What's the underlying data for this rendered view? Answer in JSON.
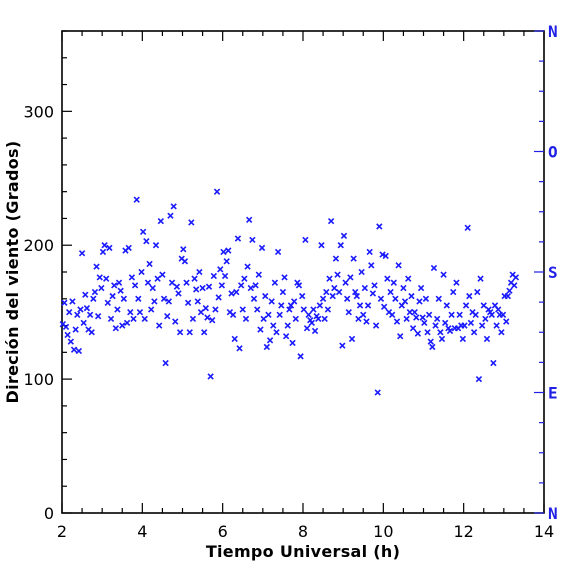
{
  "chart_data": {
    "type": "scatter",
    "xlabel": "Tiempo Universal (h)",
    "ylabel": "Direción del viento (Grados)",
    "xlim": [
      2,
      14
    ],
    "ylim": [
      0,
      360
    ],
    "x_ticks": [
      "2",
      "4",
      "6",
      "8",
      "10",
      "12",
      "14"
    ],
    "y_ticks": [
      "0",
      "100",
      "200",
      "300"
    ],
    "right_axis_labels": [
      {
        "value": 0,
        "label": "N"
      },
      {
        "value": 90,
        "label": "E"
      },
      {
        "value": 180,
        "label": "S"
      },
      {
        "value": 270,
        "label": "O"
      },
      {
        "value": 360,
        "label": "N"
      }
    ],
    "marker": "x",
    "marker_color": "#1a1aff",
    "grid": false,
    "points": [
      [
        2.02,
        141
      ],
      [
        2.06,
        157
      ],
      [
        2.1,
        139
      ],
      [
        2.14,
        133
      ],
      [
        2.18,
        150
      ],
      [
        2.22,
        128
      ],
      [
        2.26,
        158
      ],
      [
        2.3,
        122
      ],
      [
        2.34,
        137
      ],
      [
        2.38,
        148
      ],
      [
        2.42,
        121
      ],
      [
        2.46,
        152
      ],
      [
        2.5,
        194
      ],
      [
        2.54,
        142
      ],
      [
        2.58,
        163
      ],
      [
        2.62,
        153
      ],
      [
        2.66,
        137
      ],
      [
        2.7,
        148
      ],
      [
        2.74,
        135
      ],
      [
        2.78,
        160
      ],
      [
        2.82,
        165
      ],
      [
        2.86,
        184
      ],
      [
        2.9,
        147
      ],
      [
        2.94,
        176
      ],
      [
        2.98,
        168
      ],
      [
        3.02,
        195
      ],
      [
        3.06,
        200
      ],
      [
        3.1,
        175
      ],
      [
        3.14,
        157
      ],
      [
        3.18,
        198
      ],
      [
        3.22,
        145
      ],
      [
        3.26,
        162
      ],
      [
        3.3,
        170
      ],
      [
        3.34,
        138
      ],
      [
        3.38,
        152
      ],
      [
        3.42,
        172
      ],
      [
        3.46,
        166
      ],
      [
        3.5,
        140
      ],
      [
        3.54,
        160
      ],
      [
        3.58,
        196
      ],
      [
        3.62,
        142
      ],
      [
        3.66,
        198
      ],
      [
        3.7,
        150
      ],
      [
        3.74,
        176
      ],
      [
        3.78,
        145
      ],
      [
        3.82,
        170
      ],
      [
        3.86,
        234
      ],
      [
        3.9,
        160
      ],
      [
        3.94,
        150
      ],
      [
        3.98,
        180
      ],
      [
        4.02,
        210
      ],
      [
        4.06,
        145
      ],
      [
        4.1,
        203
      ],
      [
        4.14,
        172
      ],
      [
        4.18,
        186
      ],
      [
        4.22,
        152
      ],
      [
        4.26,
        168
      ],
      [
        4.3,
        158
      ],
      [
        4.34,
        200
      ],
      [
        4.38,
        175
      ],
      [
        4.42,
        140
      ],
      [
        4.46,
        218
      ],
      [
        4.5,
        178
      ],
      [
        4.54,
        160
      ],
      [
        4.58,
        112
      ],
      [
        4.62,
        147
      ],
      [
        4.66,
        158
      ],
      [
        4.7,
        222
      ],
      [
        4.74,
        172
      ],
      [
        4.78,
        229
      ],
      [
        4.82,
        143
      ],
      [
        4.86,
        169
      ],
      [
        4.9,
        164
      ],
      [
        4.94,
        135
      ],
      [
        4.98,
        190
      ],
      [
        5.02,
        197
      ],
      [
        5.06,
        188
      ],
      [
        5.1,
        172
      ],
      [
        5.14,
        157
      ],
      [
        5.18,
        135
      ],
      [
        5.22,
        217
      ],
      [
        5.26,
        145
      ],
      [
        5.3,
        175
      ],
      [
        5.34,
        167
      ],
      [
        5.38,
        158
      ],
      [
        5.42,
        180
      ],
      [
        5.46,
        150
      ],
      [
        5.5,
        168
      ],
      [
        5.54,
        135
      ],
      [
        5.58,
        153
      ],
      [
        5.62,
        146
      ],
      [
        5.66,
        169
      ],
      [
        5.7,
        102
      ],
      [
        5.74,
        144
      ],
      [
        5.78,
        177
      ],
      [
        5.82,
        152
      ],
      [
        5.86,
        240
      ],
      [
        5.9,
        161
      ],
      [
        5.94,
        182
      ],
      [
        5.98,
        170
      ],
      [
        6.02,
        195
      ],
      [
        6.06,
        177
      ],
      [
        6.1,
        188
      ],
      [
        6.14,
        196
      ],
      [
        6.18,
        150
      ],
      [
        6.22,
        164
      ],
      [
        6.26,
        148
      ],
      [
        6.3,
        130
      ],
      [
        6.34,
        165
      ],
      [
        6.38,
        205
      ],
      [
        6.42,
        123
      ],
      [
        6.46,
        170
      ],
      [
        6.5,
        152
      ],
      [
        6.54,
        175
      ],
      [
        6.58,
        145
      ],
      [
        6.62,
        184
      ],
      [
        6.66,
        219
      ],
      [
        6.7,
        168
      ],
      [
        6.74,
        204
      ],
      [
        6.78,
        160
      ],
      [
        6.82,
        170
      ],
      [
        6.86,
        152
      ],
      [
        6.9,
        178
      ],
      [
        6.94,
        137
      ],
      [
        6.98,
        198
      ],
      [
        7.02,
        145
      ],
      [
        7.06,
        162
      ],
      [
        7.1,
        124
      ],
      [
        7.14,
        148
      ],
      [
        7.18,
        129
      ],
      [
        7.22,
        158
      ],
      [
        7.26,
        140
      ],
      [
        7.3,
        172
      ],
      [
        7.34,
        135
      ],
      [
        7.38,
        195
      ],
      [
        7.42,
        148
      ],
      [
        7.46,
        155
      ],
      [
        7.5,
        165
      ],
      [
        7.54,
        176
      ],
      [
        7.58,
        132
      ],
      [
        7.62,
        140
      ],
      [
        7.66,
        152
      ],
      [
        7.7,
        155
      ],
      [
        7.74,
        127
      ],
      [
        7.78,
        158
      ],
      [
        7.82,
        145
      ],
      [
        7.86,
        172
      ],
      [
        7.9,
        170
      ],
      [
        7.94,
        117
      ],
      [
        7.98,
        162
      ],
      [
        8.02,
        152
      ],
      [
        8.06,
        204
      ],
      [
        8.1,
        138
      ],
      [
        8.14,
        148
      ],
      [
        8.18,
        144
      ],
      [
        8.22,
        142
      ],
      [
        8.26,
        152
      ],
      [
        8.3,
        136
      ],
      [
        8.34,
        147
      ],
      [
        8.38,
        145
      ],
      [
        8.42,
        155
      ],
      [
        8.46,
        200
      ],
      [
        8.5,
        160
      ],
      [
        8.54,
        145
      ],
      [
        8.58,
        165
      ],
      [
        8.62,
        152
      ],
      [
        8.66,
        175
      ],
      [
        8.7,
        218
      ],
      [
        8.74,
        162
      ],
      [
        8.78,
        168
      ],
      [
        8.82,
        190
      ],
      [
        8.86,
        178
      ],
      [
        8.9,
        165
      ],
      [
        8.94,
        200
      ],
      [
        8.98,
        125
      ],
      [
        9.02,
        207
      ],
      [
        9.06,
        172
      ],
      [
        9.1,
        160
      ],
      [
        9.14,
        150
      ],
      [
        9.18,
        176
      ],
      [
        9.22,
        130
      ],
      [
        9.26,
        190
      ],
      [
        9.3,
        165
      ],
      [
        9.34,
        162
      ],
      [
        9.38,
        145
      ],
      [
        9.42,
        155
      ],
      [
        9.46,
        180
      ],
      [
        9.5,
        148
      ],
      [
        9.54,
        168
      ],
      [
        9.58,
        143
      ],
      [
        9.62,
        155
      ],
      [
        9.66,
        195
      ],
      [
        9.7,
        185
      ],
      [
        9.74,
        164
      ],
      [
        9.78,
        170
      ],
      [
        9.82,
        140
      ],
      [
        9.86,
        90
      ],
      [
        9.9,
        214
      ],
      [
        9.94,
        160
      ],
      [
        9.98,
        193
      ],
      [
        10.02,
        154
      ],
      [
        10.06,
        192
      ],
      [
        10.1,
        175
      ],
      [
        10.14,
        150
      ],
      [
        10.18,
        165
      ],
      [
        10.22,
        148
      ],
      [
        10.26,
        172
      ],
      [
        10.3,
        160
      ],
      [
        10.34,
        143
      ],
      [
        10.38,
        185
      ],
      [
        10.42,
        132
      ],
      [
        10.46,
        155
      ],
      [
        10.5,
        168
      ],
      [
        10.54,
        158
      ],
      [
        10.58,
        145
      ],
      [
        10.62,
        175
      ],
      [
        10.66,
        150
      ],
      [
        10.7,
        162
      ],
      [
        10.74,
        138
      ],
      [
        10.78,
        150
      ],
      [
        10.82,
        146
      ],
      [
        10.86,
        134
      ],
      [
        10.9,
        158
      ],
      [
        10.94,
        168
      ],
      [
        10.98,
        146
      ],
      [
        11.02,
        142
      ],
      [
        11.06,
        160
      ],
      [
        11.1,
        135
      ],
      [
        11.14,
        148
      ],
      [
        11.18,
        128
      ],
      [
        11.22,
        124
      ],
      [
        11.26,
        183
      ],
      [
        11.3,
        140
      ],
      [
        11.34,
        145
      ],
      [
        11.38,
        160
      ],
      [
        11.42,
        135
      ],
      [
        11.46,
        130
      ],
      [
        11.5,
        178
      ],
      [
        11.54,
        142
      ],
      [
        11.58,
        155
      ],
      [
        11.62,
        138
      ],
      [
        11.66,
        136
      ],
      [
        11.7,
        148
      ],
      [
        11.74,
        165
      ],
      [
        11.78,
        138
      ],
      [
        11.82,
        172
      ],
      [
        11.86,
        138
      ],
      [
        11.9,
        148
      ],
      [
        11.94,
        140
      ],
      [
        11.98,
        130
      ],
      [
        12.02,
        140
      ],
      [
        12.06,
        155
      ],
      [
        12.1,
        213
      ],
      [
        12.14,
        162
      ],
      [
        12.18,
        142
      ],
      [
        12.22,
        150
      ],
      [
        12.26,
        135
      ],
      [
        12.3,
        148
      ],
      [
        12.34,
        165
      ],
      [
        12.38,
        100
      ],
      [
        12.42,
        175
      ],
      [
        12.46,
        140
      ],
      [
        12.5,
        155
      ],
      [
        12.54,
        145
      ],
      [
        12.58,
        130
      ],
      [
        12.62,
        152
      ],
      [
        12.66,
        150
      ],
      [
        12.7,
        148
      ],
      [
        12.74,
        112
      ],
      [
        12.78,
        155
      ],
      [
        12.82,
        140
      ],
      [
        12.86,
        152
      ],
      [
        12.9,
        148
      ],
      [
        12.94,
        135
      ],
      [
        12.98,
        148
      ],
      [
        13.02,
        162
      ],
      [
        13.06,
        143
      ],
      [
        13.1,
        162
      ],
      [
        13.14,
        166
      ],
      [
        13.18,
        172
      ],
      [
        13.22,
        178
      ],
      [
        13.26,
        170
      ],
      [
        13.3,
        176
      ]
    ]
  }
}
